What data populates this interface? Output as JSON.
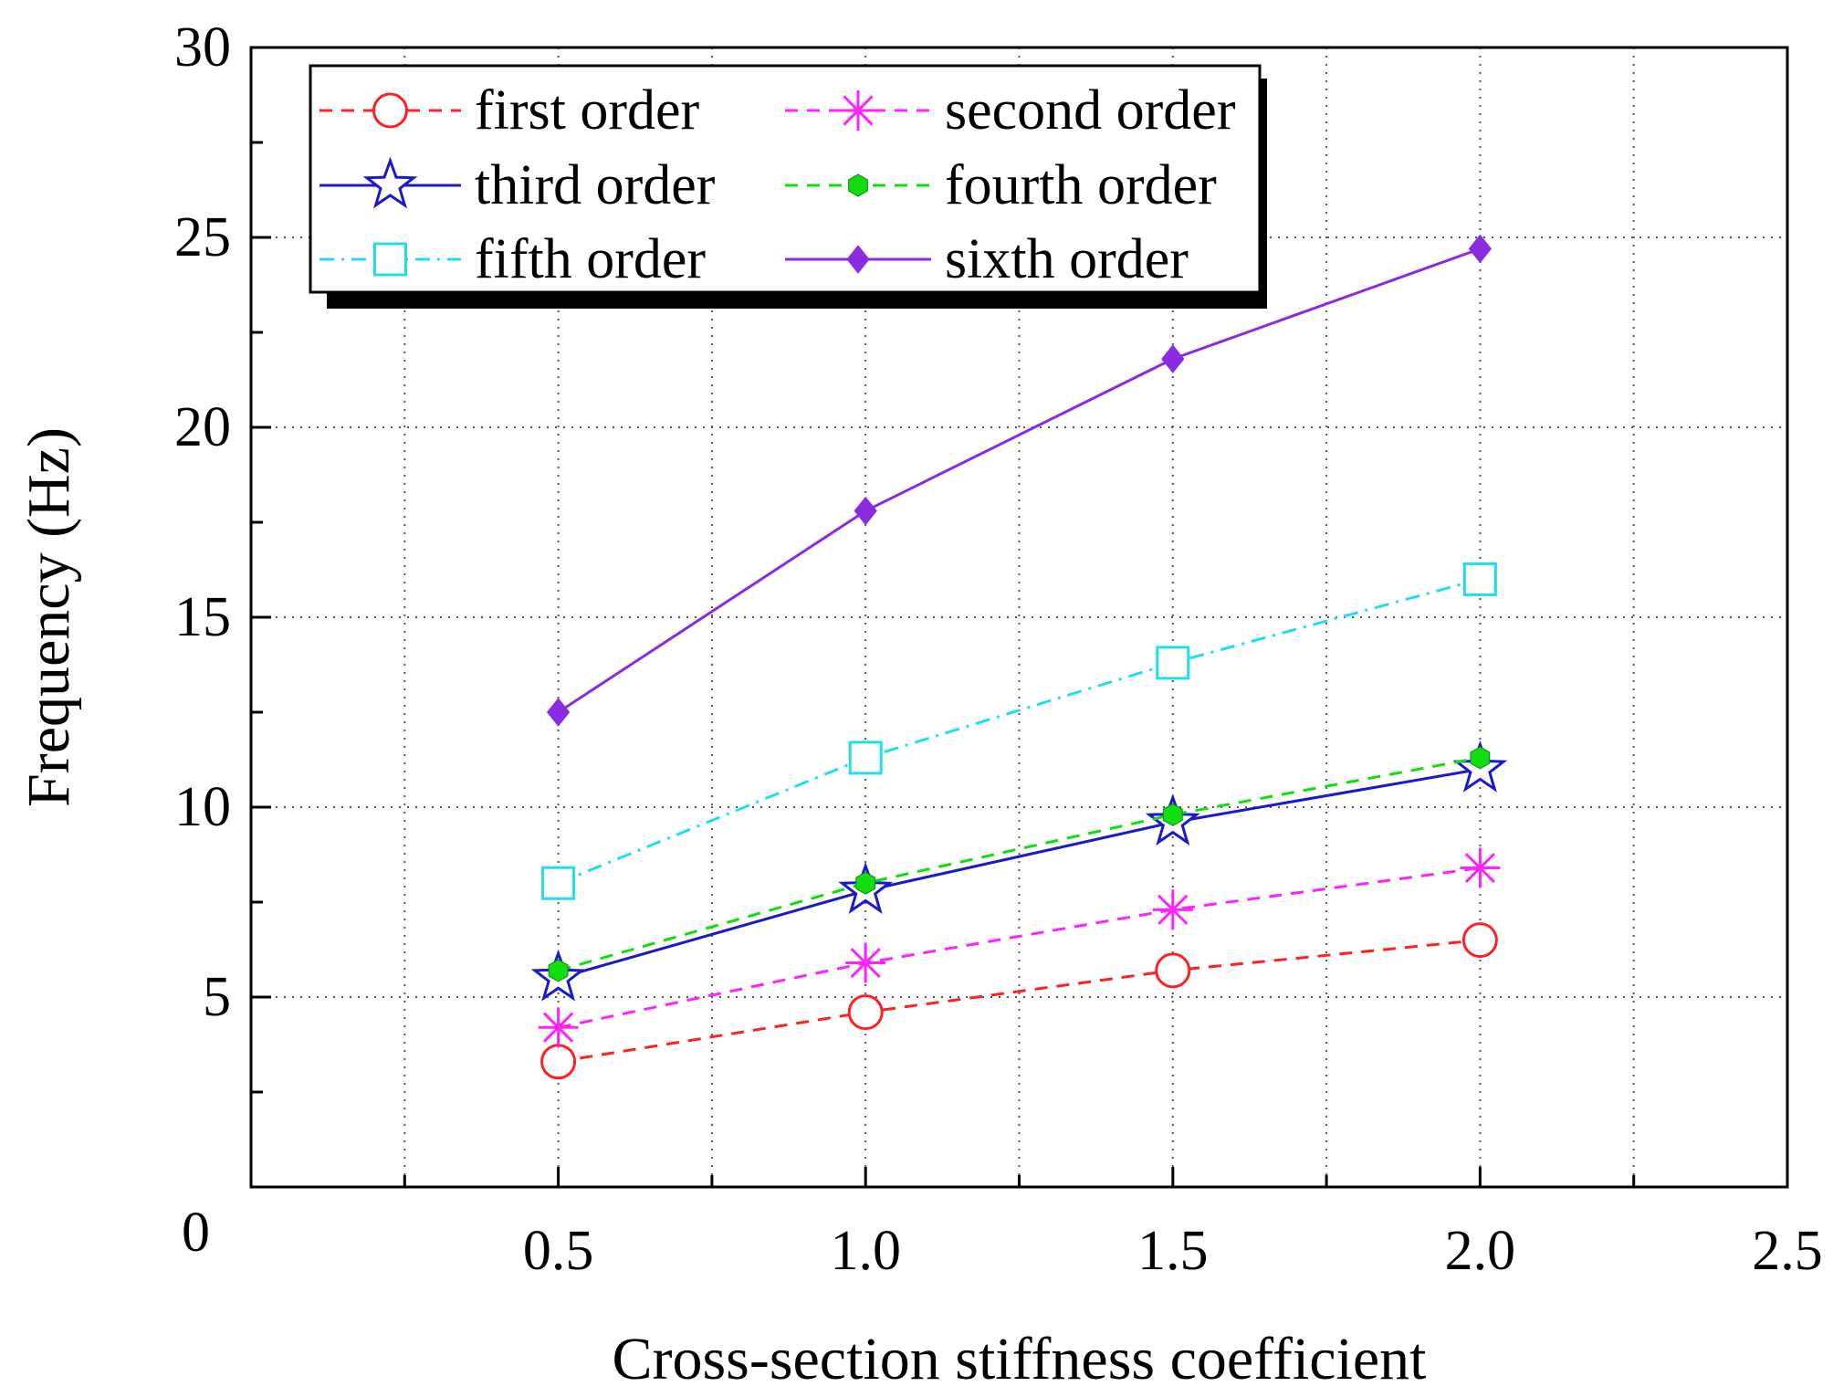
{
  "chart_data": {
    "type": "line",
    "title": "",
    "xlabel": "Cross-section stiffness coefficient",
    "ylabel": "Frequency (Hz)",
    "xlim": [
      0,
      2.5
    ],
    "ylim": [
      0,
      30
    ],
    "x_ticks": [
      0.5,
      1.0,
      1.5,
      2.0,
      2.5
    ],
    "x_tick_labels": [
      "0.5",
      "1.0",
      "1.5",
      "2.0",
      "2.5"
    ],
    "y_ticks": [
      5,
      10,
      15,
      20,
      25,
      30
    ],
    "y_tick_labels": [
      "5",
      "10",
      "15",
      "20",
      "25",
      "30"
    ],
    "origin_label": "0",
    "grid": true,
    "legend_position": "top-left",
    "x": [
      0.5,
      1.0,
      1.5,
      2.0
    ],
    "series": [
      {
        "name": "first order",
        "values": [
          3.3,
          4.6,
          5.7,
          6.5
        ],
        "color": "#ff2020",
        "dash": "dash",
        "marker": "circle"
      },
      {
        "name": "second order",
        "values": [
          4.2,
          5.9,
          7.3,
          8.4
        ],
        "color": "#ff22ff",
        "dash": "dash",
        "marker": "asterisk"
      },
      {
        "name": "third order",
        "values": [
          5.5,
          7.8,
          9.6,
          11.0
        ],
        "color": "#1a1acc",
        "dash": "solid",
        "marker": "star"
      },
      {
        "name": "fourth order",
        "values": [
          5.7,
          8.0,
          9.8,
          11.3
        ],
        "color": "#11dd11",
        "dash": "dash",
        "marker": "hexagon"
      },
      {
        "name": "fifth order",
        "values": [
          8.0,
          11.3,
          13.8,
          16.0
        ],
        "color": "#22ddee",
        "dash": "dashdot",
        "marker": "square"
      },
      {
        "name": "sixth order",
        "values": [
          12.5,
          17.8,
          21.8,
          24.7
        ],
        "color": "#8a2be2",
        "dash": "solid",
        "marker": "diamond"
      }
    ]
  }
}
